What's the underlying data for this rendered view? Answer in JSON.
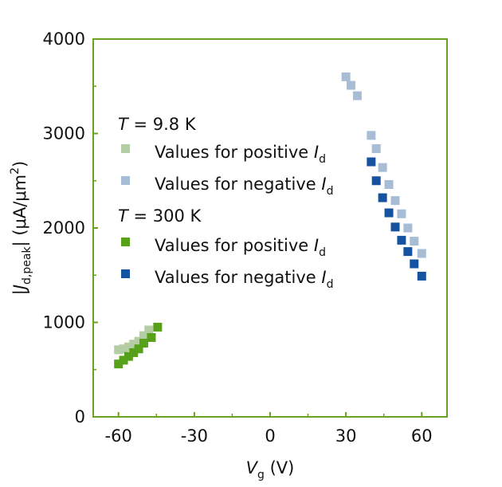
{
  "chart_data": {
    "type": "scatter",
    "xlabel": {
      "main": "V",
      "sub": "g",
      "unit": " (V)"
    },
    "ylabel": {
      "prefix": "|",
      "main": "J",
      "sub": "d,peak",
      "mid": "| (μA/μm",
      "sup": "2",
      "end": ")"
    },
    "xlim": [
      -70,
      70
    ],
    "ylim": [
      0,
      4000
    ],
    "xticks": [
      -60,
      -30,
      0,
      30,
      60
    ],
    "xtick_labels": [
      "-60",
      "-30",
      "0",
      "30",
      "60"
    ],
    "yticks": [
      0,
      1000,
      2000,
      3000,
      4000
    ],
    "ytick_labels": [
      "0",
      "1000",
      "2000",
      "3000",
      "4000"
    ],
    "axis_color": "#6aa121",
    "grid": false,
    "legend": {
      "placement": "top-left",
      "groups": [
        {
          "title_italic": "T",
          "title_rest": " = 9.8 K",
          "series_index": [
            0,
            1
          ]
        },
        {
          "title_italic": "T",
          "title_rest": " = 300 K",
          "series_index": [
            2,
            3
          ]
        }
      ]
    },
    "series": [
      {
        "name": "Values for positive ",
        "name_italic": "I",
        "name_sub": "d",
        "color": "#b5cda4",
        "points": [
          [
            -60,
            710
          ],
          [
            -58,
            720
          ],
          [
            -56,
            740
          ],
          [
            -54,
            770
          ],
          [
            -52,
            800
          ],
          [
            -50,
            860
          ],
          [
            -48,
            920
          ]
        ]
      },
      {
        "name": "Values for negative ",
        "name_italic": "I",
        "name_sub": "d",
        "color": "#a7bcd5",
        "points": [
          [
            30,
            3600
          ],
          [
            32,
            3510
          ],
          [
            34.5,
            3400
          ],
          [
            40,
            2980
          ],
          [
            42,
            2840
          ],
          [
            44.5,
            2640
          ],
          [
            47,
            2460
          ],
          [
            49.5,
            2290
          ],
          [
            52,
            2150
          ],
          [
            54.5,
            2000
          ],
          [
            57,
            1860
          ],
          [
            60,
            1730
          ]
        ]
      },
      {
        "name": "Values for positive ",
        "name_italic": "I",
        "name_sub": "d",
        "color": "#56a01a",
        "points": [
          [
            -60,
            560
          ],
          [
            -58,
            600
          ],
          [
            -56,
            640
          ],
          [
            -54,
            680
          ],
          [
            -52,
            720
          ],
          [
            -50,
            780
          ],
          [
            -47,
            840
          ],
          [
            -44.5,
            950
          ]
        ]
      },
      {
        "name": "Values for negative ",
        "name_italic": "I",
        "name_sub": "d",
        "color": "#1552a0",
        "points": [
          [
            40,
            2700
          ],
          [
            42,
            2500
          ],
          [
            44.5,
            2320
          ],
          [
            47,
            2160
          ],
          [
            49.5,
            2010
          ],
          [
            52,
            1870
          ],
          [
            54.5,
            1750
          ],
          [
            57,
            1620
          ],
          [
            60,
            1490
          ]
        ]
      }
    ]
  }
}
